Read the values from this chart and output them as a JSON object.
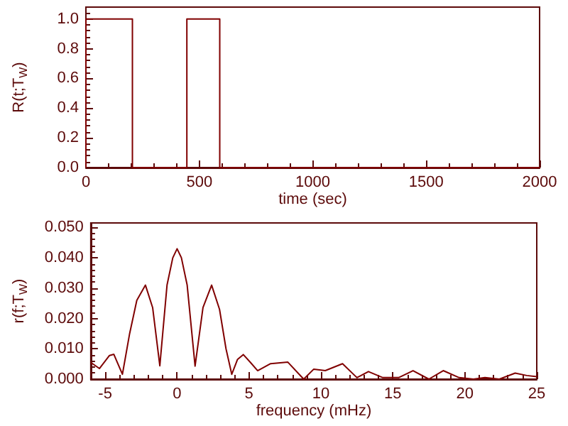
{
  "chart_data": [
    {
      "type": "line",
      "xlabel": "time (sec)",
      "ylabel": "R(t;T$_{W}$)",
      "xlim": [
        0,
        2000
      ],
      "xticks": [
        0,
        500,
        1000,
        1500,
        2000
      ],
      "ylim": [
        0,
        1.08
      ],
      "yticks": [
        {
          "value": 0,
          "label": "0.0"
        },
        {
          "value": 0.2,
          "label": "0.2"
        },
        {
          "value": 0.4,
          "label": "0.4"
        },
        {
          "value": 0.6,
          "label": "0.6"
        },
        {
          "value": 0.8,
          "label": "0.8"
        },
        {
          "value": 1,
          "label": "1.0"
        }
      ],
      "grid": false,
      "marker": "none",
      "line_style": "solid",
      "series": [
        {
          "color": "#800000",
          "x": [
            0,
            0,
            205,
            205,
            445,
            445,
            590,
            590,
            2000
          ],
          "values": [
            0,
            1,
            1,
            0,
            0,
            1,
            1,
            0,
            0
          ]
        }
      ]
    },
    {
      "type": "line",
      "xlabel": "frequency (mHz)",
      "ylabel": "r(f;T$_{W}$)",
      "xlim": [
        -6,
        25
      ],
      "xticks": [
        -5,
        0,
        5,
        10,
        15,
        20,
        25
      ],
      "ylim": [
        0,
        0.0515
      ],
      "yticks": [
        {
          "value": 0,
          "label": "0.000"
        },
        {
          "value": 0.01,
          "label": "0.010"
        },
        {
          "value": 0.02,
          "label": "0.020"
        },
        {
          "value": 0.03,
          "label": "0.030"
        },
        {
          "value": 0.04,
          "label": "0.040"
        },
        {
          "value": 0.05,
          "label": "0.050"
        }
      ],
      "grid": false,
      "marker": "none",
      "line_style": "solid",
      "series": [
        {
          "color": "#800000",
          "x": [
            -6,
            -5.4,
            -4.7,
            -4.4,
            -3.8,
            -3.3,
            -2.8,
            -2.2,
            -1.7,
            -1.2,
            -0.7,
            -0.3,
            0,
            0.3,
            0.7,
            1.25,
            1.8,
            2.4,
            2.95,
            3.4,
            3.8,
            4.2,
            4.6,
            5.1,
            5.6,
            6.5,
            7.7,
            8.8,
            9.5,
            10.3,
            11.5,
            12.5,
            13.3,
            14.3,
            15.4,
            16.4,
            17.5,
            18.5,
            19.6,
            20.6,
            21.4,
            22.4,
            23.5,
            24.3,
            25
          ],
          "values": [
            0.0055,
            0.0035,
            0.0078,
            0.0082,
            0.0016,
            0.015,
            0.026,
            0.031,
            0.0236,
            0.0044,
            0.031,
            0.04,
            0.043,
            0.04,
            0.031,
            0.0043,
            0.0236,
            0.031,
            0.023,
            0.01,
            0.0016,
            0.0065,
            0.0081,
            0.0055,
            0.0028,
            0.0051,
            0.0056,
            0.0,
            0.0033,
            0.0028,
            0.0051,
            0.0005,
            0.0025,
            0.0005,
            0.0005,
            0.0028,
            0.0,
            0.0028,
            0.0005,
            0.0,
            0.0005,
            0.0,
            0.002,
            0.0012,
            0.0008
          ]
        }
      ]
    }
  ]
}
